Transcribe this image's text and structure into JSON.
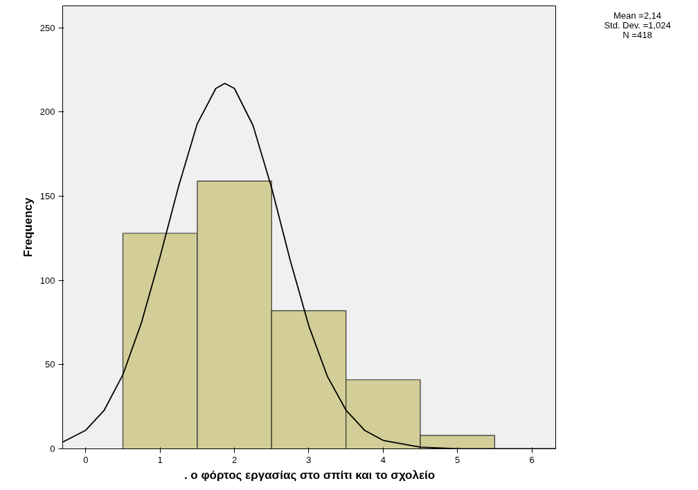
{
  "chart_data": {
    "type": "histogram",
    "xlabel": ". ο φόρτος εργασίας στο σπίτι και το σχολείο",
    "ylabel": "Frequency",
    "bins": [
      0.5,
      1.5,
      2.5,
      3.5,
      4.5,
      5.5
    ],
    "values": [
      128,
      159,
      82,
      41,
      8
    ],
    "color": "#d3ce97",
    "series": [
      {
        "type": "line",
        "color": "#000000",
        "x": [
          -0.31,
          0,
          0.25,
          0.5,
          0.75,
          1.0,
          1.25,
          1.5,
          1.75,
          1.87,
          2.0,
          2.25,
          2.5,
          2.75,
          3.0,
          3.25,
          3.5,
          3.75,
          4.0,
          4.5,
          5.0,
          6.33
        ],
        "values": [
          4,
          11,
          23,
          44,
          75,
          114,
          156,
          193,
          214,
          217,
          214,
          192,
          155,
          112,
          73,
          43,
          23,
          11,
          5,
          1,
          0,
          0
        ]
      }
    ],
    "xlim": [
      -0.31,
      6.33
    ],
    "ylim": [
      0,
      263
    ],
    "xticks": [
      0,
      1,
      2,
      3,
      4,
      5,
      6
    ],
    "yticks": [
      0,
      50,
      100,
      150,
      200,
      250
    ],
    "grid": false,
    "annotations": [
      "Mean =2,14",
      "Std. Dev. =1,024",
      "N =418"
    ]
  }
}
